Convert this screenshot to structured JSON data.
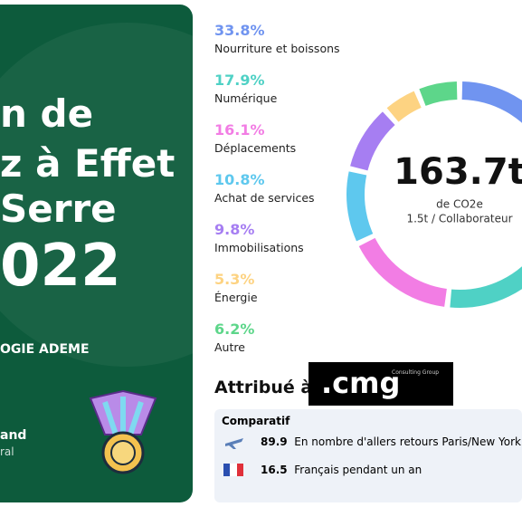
{
  "panel": {
    "title_lines": [
      "n de",
      "z à Effet",
      "Serre",
      "022"
    ],
    "method": "OGIE ADEME",
    "footer_lines": [
      "and",
      "ral"
    ]
  },
  "chart_data": {
    "type": "donut",
    "categories": [
      "Nourriture et boissons",
      "Numérique",
      "Déplacements",
      "Achat de services",
      "Immobilisations",
      "Énergie",
      "Autre"
    ],
    "values": [
      33.8,
      17.9,
      16.1,
      10.8,
      9.8,
      5.3,
      6.2
    ],
    "value_labels": [
      "33.8%",
      "17.9%",
      "16.1%",
      "10.8%",
      "9.8%",
      "5.3%",
      "6.2%"
    ],
    "colors": [
      "#7094f0",
      "#4fd1c5",
      "#f27de4",
      "#5ec8ee",
      "#a67ef2",
      "#fdd382",
      "#5dd68a"
    ],
    "center_value": "163.7t",
    "center_unit": "de CO2e",
    "center_sub": "1.5t / Collaborateur"
  },
  "award": {
    "label": "Attribué à",
    "company": ".cmg",
    "company_sub": "Consulting Group"
  },
  "comparatif": {
    "title": "Comparatif",
    "rows": [
      [
        "89.9",
        "En nombre d'allers retours Paris/New York"
      ],
      [
        "16.5",
        "Français pendant un an"
      ]
    ]
  }
}
